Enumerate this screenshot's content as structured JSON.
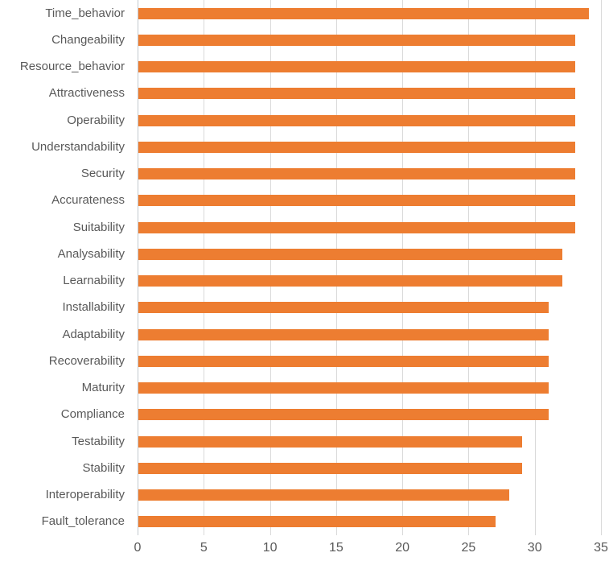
{
  "chart_data": {
    "type": "bar",
    "orientation": "horizontal",
    "title": "",
    "xlabel": "",
    "ylabel": "",
    "categories": [
      "Time_behavior",
      "Changeability",
      "Resource_behavior",
      "Attractiveness",
      "Operability",
      "Understandability",
      "Security",
      "Accurateness",
      "Suitability",
      "Analysability",
      "Learnability",
      "Installability",
      "Adaptability",
      "Recoverability",
      "Maturity",
      "Compliance",
      "Testability",
      "Stability",
      "Interoperability",
      "Fault_tolerance"
    ],
    "values": [
      34,
      33,
      33,
      33,
      33,
      33,
      33,
      33,
      33,
      32,
      32,
      31,
      31,
      31,
      31,
      31,
      29,
      29,
      28,
      27
    ],
    "xlim": [
      0,
      35
    ],
    "x_ticks": [
      0,
      5,
      10,
      15,
      20,
      25,
      30,
      35
    ],
    "x_tick_labels": [
      "0",
      "5",
      "10",
      "15",
      "20",
      "25",
      "30",
      "35"
    ],
    "grid": true,
    "legend": false,
    "colors": {
      "bar": "#ED7D31",
      "gridline": "#D9D9D9",
      "axis_line": "#C3C8CE",
      "label_text": "#595959",
      "background": "#FFFFFF"
    }
  }
}
